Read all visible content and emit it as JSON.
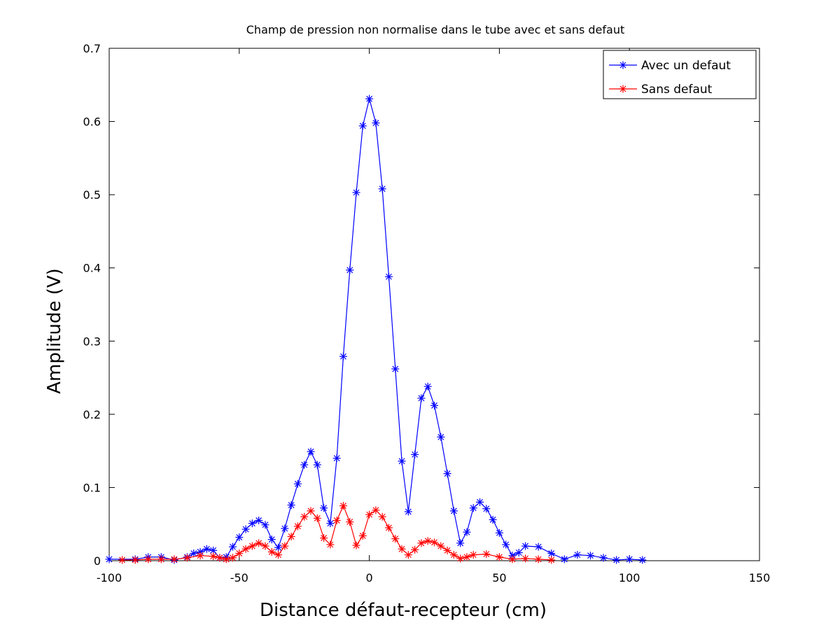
{
  "chart_data": {
    "type": "line",
    "title": "Champ de pression non normalise dans le tube avec et sans defaut",
    "xlabel": "Distance défaut-recepteur (cm)",
    "ylabel": "Amplitude (V)",
    "xlim": [
      -100,
      150
    ],
    "ylim": [
      0,
      0.7
    ],
    "xticks": [
      -100,
      -50,
      0,
      50,
      100,
      150
    ],
    "xtick_labels": [
      "-100",
      "-50",
      "0",
      "50",
      "100",
      "150"
    ],
    "yticks": [
      0,
      0.1,
      0.2,
      0.3,
      0.4,
      0.5,
      0.6,
      0.7
    ],
    "ytick_labels": [
      "0",
      "0.1",
      "0.2",
      "0.3",
      "0.4",
      "0.5",
      "0.6",
      "0.7"
    ],
    "grid": false,
    "legend_position": "top-right",
    "series": [
      {
        "name": "Avec un defaut",
        "color": "#0000ff",
        "marker": "asterisk",
        "x": [
          -100,
          -90,
          -85,
          -80,
          -75,
          -70,
          -67.5,
          -65,
          -62.5,
          -60,
          -57.5,
          -55,
          -52.5,
          -50,
          -47.5,
          -45,
          -42.5,
          -40,
          -37.5,
          -35,
          -32.5,
          -30,
          -27.5,
          -25,
          -22.5,
          -20,
          -17.5,
          -15,
          -12.5,
          -10,
          -7.5,
          -5,
          -2.5,
          0,
          2.5,
          5,
          7.5,
          10,
          12.5,
          15,
          17.5,
          20,
          22.5,
          25,
          27.5,
          30,
          32.5,
          35,
          37.5,
          40,
          42.5,
          45,
          47.5,
          50,
          52.5,
          55,
          57.5,
          60,
          65,
          70,
          75,
          80,
          85,
          90,
          95,
          100,
          105
        ],
        "y": [
          0.002,
          0.002,
          0.005,
          0.005,
          0.001,
          0.005,
          0.01,
          0.012,
          0.016,
          0.014,
          0.004,
          0.005,
          0.019,
          0.032,
          0.043,
          0.051,
          0.055,
          0.049,
          0.029,
          0.018,
          0.044,
          0.076,
          0.105,
          0.131,
          0.149,
          0.131,
          0.072,
          0.051,
          0.14,
          0.279,
          0.397,
          0.503,
          0.594,
          0.631,
          0.598,
          0.508,
          0.388,
          0.262,
          0.136,
          0.067,
          0.145,
          0.222,
          0.238,
          0.212,
          0.169,
          0.119,
          0.068,
          0.024,
          0.039,
          0.072,
          0.08,
          0.071,
          0.056,
          0.038,
          0.022,
          0.007,
          0.011,
          0.02,
          0.019,
          0.01,
          0.002,
          0.008,
          0.007,
          0.004,
          0.001,
          0.002,
          0.001
        ]
      },
      {
        "name": "Sans defaut",
        "color": "#ff0000",
        "marker": "asterisk",
        "x": [
          -95,
          -90,
          -85,
          -80,
          -75,
          -70,
          -65,
          -60,
          -57.5,
          -55,
          -52.5,
          -50,
          -47.5,
          -45,
          -42.5,
          -40,
          -37.5,
          -35,
          -32.5,
          -30,
          -27.5,
          -25,
          -22.5,
          -20,
          -17.5,
          -15,
          -12.5,
          -10,
          -7.5,
          -5,
          -2.5,
          0,
          2.5,
          5,
          7.5,
          10,
          12.5,
          15,
          17.5,
          20,
          22.5,
          25,
          27.5,
          30,
          32.5,
          35,
          37.5,
          40,
          45,
          50,
          55,
          60,
          65,
          70
        ],
        "y": [
          0.001,
          0.001,
          0.002,
          0.002,
          0.002,
          0.004,
          0.007,
          0.006,
          0.004,
          0.002,
          0.004,
          0.01,
          0.016,
          0.02,
          0.024,
          0.02,
          0.012,
          0.008,
          0.02,
          0.033,
          0.047,
          0.06,
          0.068,
          0.058,
          0.031,
          0.022,
          0.055,
          0.075,
          0.053,
          0.021,
          0.034,
          0.063,
          0.069,
          0.06,
          0.045,
          0.03,
          0.016,
          0.008,
          0.015,
          0.024,
          0.027,
          0.025,
          0.02,
          0.014,
          0.008,
          0.003,
          0.005,
          0.008,
          0.009,
          0.005,
          0.002,
          0.003,
          0.002,
          0.001
        ]
      }
    ]
  }
}
